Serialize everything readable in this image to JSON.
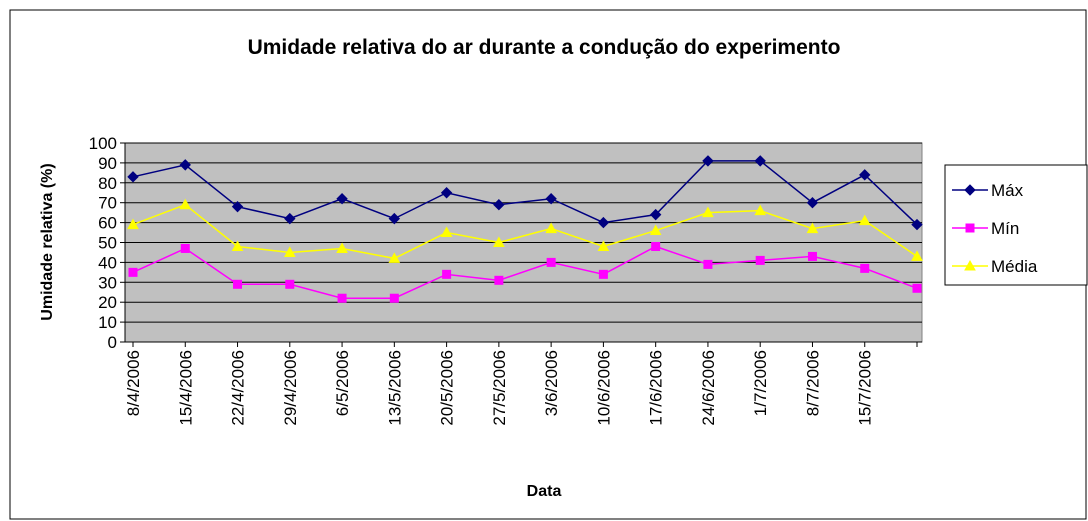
{
  "chart_data": {
    "type": "line",
    "title": "Umidade relativa do ar durante a condução do experimento",
    "x_label": "Data",
    "y_label": "Umidade relativa (%)",
    "categories": [
      "8/4/2006",
      "15/4/2006",
      "22/4/2006",
      "29/4/2006",
      "6/5/2006",
      "13/5/2006",
      "20/5/2006",
      "27/5/2006",
      "3/6/2006",
      "10/6/2006",
      "17/6/2006",
      "24/6/2006",
      "1/7/2006",
      "8/7/2006",
      "15/7/2006",
      null
    ],
    "series": [
      {
        "name": "Máx",
        "color": "#000080",
        "marker": "diamond",
        "values": [
          83,
          89,
          68,
          62,
          72,
          62,
          75,
          69,
          72,
          60,
          64,
          91,
          91,
          70,
          84,
          59
        ]
      },
      {
        "name": "Mín",
        "color": "#ff00ff",
        "marker": "square",
        "values": [
          35,
          47,
          29,
          29,
          22,
          22,
          34,
          31,
          40,
          34,
          48,
          39,
          41,
          43,
          37,
          27
        ]
      },
      {
        "name": "Média",
        "color": "#ffff00",
        "marker": "triangle",
        "values": [
          59,
          69,
          48,
          45,
          47,
          42,
          55,
          50,
          57,
          48,
          56,
          65,
          66,
          57,
          61,
          43
        ]
      }
    ],
    "ylim": [
      0,
      100
    ],
    "yticks": [
      0,
      10,
      20,
      30,
      40,
      50,
      60,
      70,
      80,
      90,
      100
    ],
    "grid": true,
    "legend": "right"
  }
}
